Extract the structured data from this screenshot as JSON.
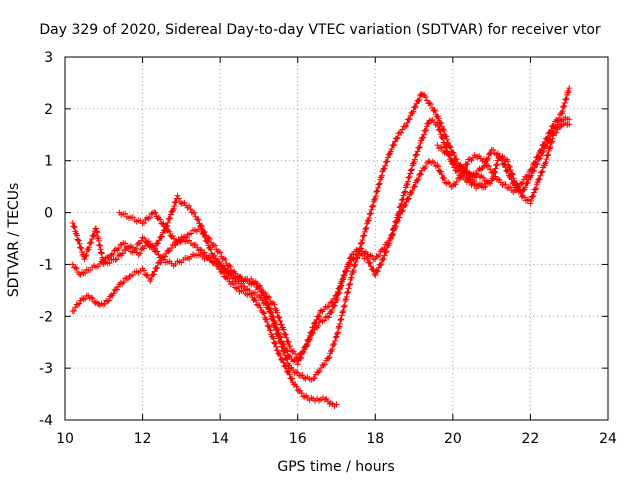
{
  "chart_data": {
    "type": "scatter",
    "title": "Day 329 of 2020, Sidereal Day-to-day VTEC variation (SDTVAR) for receiver vtor",
    "xlabel": "GPS time / hours",
    "ylabel": "SDTVAR / TECUs",
    "xlim": [
      10,
      24
    ],
    "ylim": [
      -4,
      3
    ],
    "xticks": [
      10,
      12,
      14,
      16,
      18,
      20,
      22,
      24
    ],
    "yticks": [
      -4,
      -3,
      -2,
      -1,
      0,
      1,
      2,
      3
    ],
    "grid": true,
    "marker": "+",
    "color": "#ff0000",
    "series": [
      {
        "name": "satellite track 1",
        "x": [
          10.2,
          10.5,
          10.8,
          11.0,
          11.3,
          11.6,
          11.9,
          12.1,
          12.3,
          12.6,
          12.8,
          12.9,
          13.0,
          13.2,
          13.4,
          13.6,
          13.8,
          14.0,
          14.2,
          14.4,
          14.6,
          14.8,
          15.0,
          15.2,
          15.4,
          15.6,
          15.8,
          16.0,
          16.2,
          16.4,
          16.6,
          16.8,
          17.0,
          17.2,
          17.4,
          17.6,
          17.8,
          18.0,
          18.2,
          18.4,
          18.6,
          18.8,
          19.0,
          19.2,
          19.3,
          19.5,
          19.7,
          19.9,
          20.1,
          20.3,
          20.5,
          20.7,
          20.9
        ],
        "y": [
          -0.2,
          -0.9,
          -0.3,
          -1.0,
          -0.9,
          -0.7,
          -0.8,
          -0.6,
          -0.7,
          -0.3,
          0.1,
          0.3,
          0.2,
          0.1,
          -0.1,
          -0.4,
          -0.6,
          -0.8,
          -1.0,
          -1.2,
          -1.3,
          -1.3,
          -1.4,
          -1.7,
          -2.2,
          -2.6,
          -3.0,
          -3.1,
          -3.2,
          -3.2,
          -3.0,
          -2.8,
          -2.4,
          -1.8,
          -1.2,
          -0.7,
          -0.2,
          0.3,
          0.8,
          1.2,
          1.5,
          1.7,
          2.0,
          2.3,
          2.2,
          2.0,
          1.7,
          1.3,
          1.0,
          0.8,
          0.7,
          0.7,
          0.6
        ]
      },
      {
        "name": "satellite track 2",
        "x": [
          10.2,
          10.4,
          10.6,
          10.9,
          11.2,
          11.5,
          11.8,
          12.0,
          12.2,
          12.5,
          12.8,
          13.1,
          13.4,
          13.7,
          14.0,
          14.3,
          14.6,
          14.9,
          15.2,
          15.4,
          15.6,
          15.8,
          16.0,
          16.2,
          16.4,
          16.6,
          16.8,
          17.0,
          17.2,
          17.4,
          17.6,
          17.8,
          18.0,
          18.2,
          18.4,
          18.6,
          18.8,
          19.0,
          19.2,
          19.4,
          19.6,
          19.8,
          20.0,
          20.2,
          20.4,
          20.6,
          20.8
        ],
        "y": [
          -1.0,
          -1.2,
          -1.1,
          -1.0,
          -0.8,
          -0.6,
          -0.7,
          -0.5,
          -0.6,
          -0.9,
          -1.0,
          -0.9,
          -0.8,
          -0.9,
          -1.0,
          -1.2,
          -1.3,
          -1.4,
          -1.6,
          -1.8,
          -2.2,
          -2.6,
          -2.8,
          -2.6,
          -2.2,
          -1.9,
          -1.8,
          -1.6,
          -1.2,
          -0.8,
          -0.7,
          -0.8,
          -0.9,
          -0.7,
          -0.5,
          0.0,
          0.5,
          1.0,
          1.4,
          1.8,
          1.7,
          1.3,
          0.9,
          0.7,
          0.6,
          0.5,
          0.5
        ]
      },
      {
        "name": "satellite track 3",
        "x": [
          10.2,
          10.4,
          10.6,
          10.9,
          11.1,
          11.4,
          11.7,
          12.0,
          12.2,
          12.4,
          12.7,
          13.0,
          13.3,
          13.6,
          13.9,
          14.2,
          14.5,
          14.8,
          15.1,
          15.3,
          15.5,
          15.7,
          15.9,
          16.1,
          16.3,
          16.5,
          16.7,
          16.9,
          17.0
        ],
        "y": [
          -1.9,
          -1.7,
          -1.6,
          -1.8,
          -1.7,
          -1.4,
          -1.2,
          -1.1,
          -1.3,
          -1.0,
          -0.7,
          -0.5,
          -0.6,
          -0.8,
          -1.0,
          -1.3,
          -1.5,
          -1.6,
          -1.9,
          -2.3,
          -2.7,
          -3.0,
          -3.3,
          -3.5,
          -3.6,
          -3.6,
          -3.6,
          -3.7,
          -3.7
        ]
      },
      {
        "name": "satellite track 4",
        "x": [
          11.4,
          11.7,
          12.0,
          12.3,
          12.6,
          12.9,
          13.2,
          13.5,
          13.8,
          14.1,
          14.4,
          14.7,
          15.0,
          15.3,
          15.6,
          15.8,
          16.0,
          16.2,
          16.4,
          16.6,
          16.8,
          17.0,
          17.2,
          17.4,
          17.6,
          17.8,
          18.0,
          18.2,
          18.4,
          18.6,
          18.8,
          19.0,
          19.2,
          19.4,
          19.6,
          19.8,
          20.0,
          20.2,
          20.4,
          20.6,
          20.8,
          21.0,
          21.2,
          21.4,
          21.6,
          21.8,
          22.0,
          22.2,
          22.4,
          22.6,
          22.8,
          23.0
        ],
        "y": [
          0.0,
          -0.1,
          -0.2,
          0.0,
          -0.3,
          -0.6,
          -0.4,
          -0.3,
          -0.8,
          -1.1,
          -1.3,
          -1.5,
          -1.6,
          -1.9,
          -2.5,
          -2.8,
          -2.9,
          -2.6,
          -2.3,
          -2.1,
          -2.0,
          -1.7,
          -1.2,
          -0.9,
          -0.8,
          -0.9,
          -1.2,
          -0.9,
          -0.5,
          -0.1,
          0.2,
          0.5,
          0.8,
          1.0,
          0.9,
          0.6,
          0.5,
          0.7,
          1.0,
          1.1,
          1.0,
          0.8,
          0.6,
          0.5,
          0.4,
          0.6,
          0.8,
          1.1,
          1.4,
          1.7,
          1.9,
          2.4
        ]
      },
      {
        "name": "satellite track 5",
        "x": [
          19.6,
          19.9,
          20.2,
          20.5,
          20.8,
          21.0,
          21.2,
          21.4,
          21.6,
          21.8,
          22.0,
          22.2,
          22.4,
          22.6,
          22.8,
          23.0
        ],
        "y": [
          1.3,
          1.1,
          0.8,
          0.6,
          0.5,
          0.6,
          1.1,
          1.0,
          0.6,
          0.3,
          0.2,
          0.6,
          1.0,
          1.5,
          1.7,
          1.7
        ]
      },
      {
        "name": "satellite track 6",
        "x": [
          20.2,
          20.5,
          20.8,
          21.0,
          21.2,
          21.4,
          21.6,
          21.8,
          22.0,
          22.2,
          22.4,
          22.6,
          22.8,
          23.0
        ],
        "y": [
          0.9,
          0.7,
          0.9,
          1.2,
          1.1,
          0.8,
          0.5,
          0.4,
          0.7,
          1.0,
          1.3,
          1.6,
          1.8,
          1.8
        ]
      }
    ]
  }
}
